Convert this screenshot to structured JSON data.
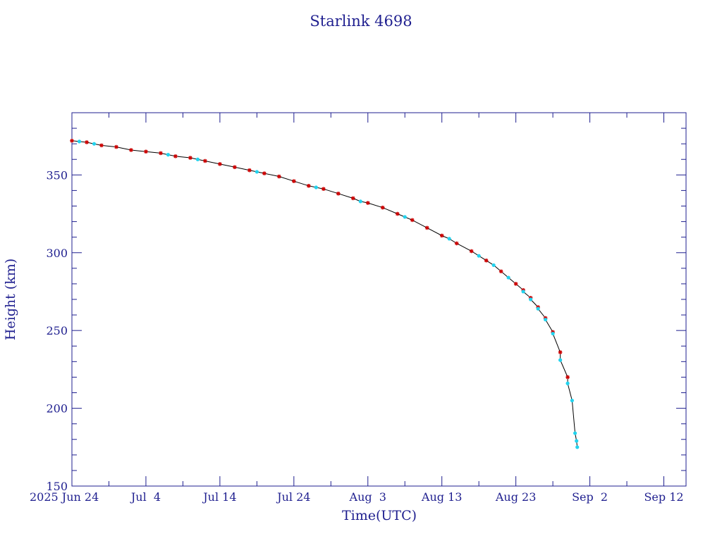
{
  "chart_data": {
    "type": "scatter",
    "title": "Starlink 4698",
    "xlabel": "Time(UTC)",
    "ylabel": "Height (km)",
    "x_axis_type": "date",
    "xlim": [
      "2025-06-24",
      "2025-09-15"
    ],
    "ylim": [
      150,
      390
    ],
    "x_tick_labels": [
      "2025 Jun 24",
      "Jul  4",
      "Jul 14",
      "Jul 24",
      "Aug  3",
      "Aug 13",
      "Aug 23",
      "Sep  2",
      "Sep 12"
    ],
    "x_tick_dates": [
      "2025-06-24",
      "2025-07-04",
      "2025-07-14",
      "2025-07-24",
      "2025-08-03",
      "2025-08-13",
      "2025-08-23",
      "2025-09-02",
      "2025-09-12"
    ],
    "y_ticks": [
      150,
      200,
      250,
      300,
      350
    ],
    "grid": false,
    "colors": {
      "axis": "#1f1f8f",
      "line": "#000000",
      "red_marker": "#cc0000",
      "cyan_marker": "#22d3ee"
    },
    "series": [
      {
        "marker": "red-star",
        "color": "#cc0000",
        "points": [
          [
            "2025-06-24",
            372
          ],
          [
            "2025-06-26",
            371
          ],
          [
            "2025-06-28",
            369
          ],
          [
            "2025-06-30",
            368
          ],
          [
            "2025-07-02",
            366
          ],
          [
            "2025-07-04",
            365
          ],
          [
            "2025-07-06",
            364
          ],
          [
            "2025-07-08",
            362
          ],
          [
            "2025-07-10",
            361
          ],
          [
            "2025-07-12",
            359
          ],
          [
            "2025-07-14",
            357
          ],
          [
            "2025-07-16",
            355
          ],
          [
            "2025-07-18",
            353
          ],
          [
            "2025-07-20",
            351
          ],
          [
            "2025-07-22",
            349
          ],
          [
            "2025-07-24",
            346
          ],
          [
            "2025-07-26",
            343
          ],
          [
            "2025-07-28",
            341
          ],
          [
            "2025-07-30",
            338
          ],
          [
            "2025-08-01",
            335
          ],
          [
            "2025-08-03",
            332
          ],
          [
            "2025-08-05",
            329
          ],
          [
            "2025-08-07",
            325
          ],
          [
            "2025-08-09",
            321
          ],
          [
            "2025-08-11",
            316
          ],
          [
            "2025-08-13",
            311
          ],
          [
            "2025-08-15",
            306
          ],
          [
            "2025-08-17",
            301
          ],
          [
            "2025-08-19",
            295
          ],
          [
            "2025-08-21",
            288
          ],
          [
            "2025-08-23",
            280
          ],
          [
            "2025-08-24",
            276
          ],
          [
            "2025-08-25",
            271
          ],
          [
            "2025-08-26",
            265
          ],
          [
            "2025-08-27",
            258
          ],
          [
            "2025-08-28",
            249
          ],
          [
            "2025-08-29",
            236
          ],
          [
            "2025-08-30",
            220
          ]
        ]
      },
      {
        "marker": "cyan-dot",
        "color": "#22d3ee",
        "points": [
          [
            "2025-06-25",
            371.5
          ],
          [
            "2025-06-27",
            370
          ],
          [
            "2025-07-07",
            363
          ],
          [
            "2025-07-11",
            360
          ],
          [
            "2025-07-19",
            352
          ],
          [
            "2025-07-27",
            342
          ],
          [
            "2025-08-02",
            333
          ],
          [
            "2025-08-08",
            323
          ],
          [
            "2025-08-14",
            309
          ],
          [
            "2025-08-18",
            298
          ],
          [
            "2025-08-20",
            292
          ],
          [
            "2025-08-22",
            284
          ],
          [
            "2025-08-24",
            275
          ],
          [
            "2025-08-25",
            270
          ],
          [
            "2025-08-26",
            264
          ],
          [
            "2025-08-27",
            257
          ],
          [
            "2025-08-28",
            248
          ],
          [
            "2025-08-29",
            231
          ],
          [
            "2025-08-30",
            216
          ],
          [
            "2025-08-30.6",
            205
          ],
          [
            "2025-08-31",
            184
          ],
          [
            "2025-08-31.2",
            179
          ],
          [
            "2025-08-31.3",
            175
          ]
        ]
      }
    ]
  }
}
